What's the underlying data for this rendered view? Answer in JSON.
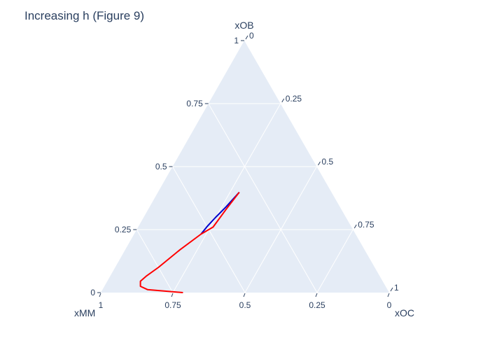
{
  "chart_data": {
    "type": "ternary-line",
    "title": "Increasing h (Figure 9)",
    "axes": {
      "a": {
        "title": "xOB",
        "ticks": [
          0,
          0.25,
          0.5,
          0.75,
          1
        ],
        "tick_labels": [
          "0",
          "0.25",
          "0.5",
          "0.75",
          "1"
        ]
      },
      "b": {
        "title": "xMM",
        "ticks": [
          0,
          0.25,
          0.5,
          0.75,
          1
        ],
        "tick_labels": [
          "0",
          "0.25",
          "0.5",
          "0.75",
          "1"
        ]
      },
      "c": {
        "title": "xOC",
        "ticks": [
          0,
          0.25,
          0.5,
          0.75,
          1
        ],
        "tick_labels": [
          "0",
          "0.25",
          "0.5",
          "0.75",
          "1"
        ]
      }
    },
    "grid": true,
    "legend": "none",
    "series": [
      {
        "color": "#0000cc",
        "points": [
          {
            "a": 0.398,
            "b": 0.32,
            "c": 0.282
          },
          {
            "a": 0.34,
            "b": 0.395,
            "c": 0.265
          },
          {
            "a": 0.3,
            "b": 0.45,
            "c": 0.25
          },
          {
            "a": 0.262,
            "b": 0.5,
            "c": 0.238
          },
          {
            "a": 0.232,
            "b": 0.536,
            "c": 0.232
          }
        ]
      },
      {
        "color": "#ff0000",
        "points": [
          {
            "a": 0.398,
            "b": 0.32,
            "c": 0.282
          },
          {
            "a": 0.33,
            "b": 0.4,
            "c": 0.27
          },
          {
            "a": 0.26,
            "b": 0.48,
            "c": 0.26
          },
          {
            "a": 0.232,
            "b": 0.536,
            "c": 0.232
          },
          {
            "a": 0.17,
            "b": 0.64,
            "c": 0.19
          },
          {
            "a": 0.1,
            "b": 0.75,
            "c": 0.15
          },
          {
            "a": 0.065,
            "b": 0.81,
            "c": 0.125
          },
          {
            "a": 0.045,
            "b": 0.84,
            "c": 0.115
          },
          {
            "a": 0.025,
            "b": 0.85,
            "c": 0.125
          },
          {
            "a": 0.012,
            "b": 0.832,
            "c": 0.156
          },
          {
            "a": 0.0,
            "b": 0.715,
            "c": 0.285
          }
        ]
      }
    ],
    "style": {
      "background": "#e5ecf6",
      "grid_color": "#ffffff",
      "text_color": "#2a3f5f"
    }
  }
}
